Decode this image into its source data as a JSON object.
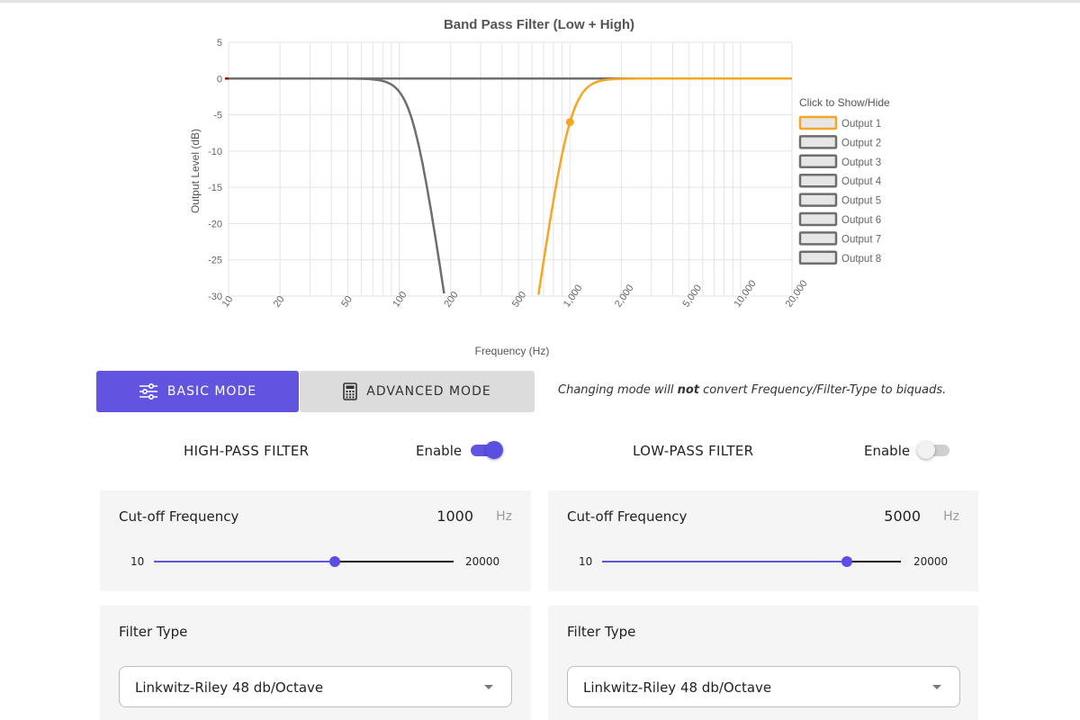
{
  "chart_data": {
    "type": "line",
    "title": "Band Pass Filter (Low + High)",
    "xlabel": "Frequency (Hz)",
    "ylabel": "Output Level (dB)",
    "x_scale": "log",
    "xlim": [
      10,
      20000
    ],
    "ylim": [
      -30,
      5
    ],
    "y_ticks": [
      5,
      0,
      -5,
      -10,
      -15,
      -20,
      -25,
      -30
    ],
    "x_ticks": [
      10,
      20,
      50,
      100,
      200,
      500,
      1000,
      2000,
      5000,
      10000,
      20000
    ],
    "x_tick_labels": [
      "10",
      "20",
      "50",
      "100",
      "200",
      "500",
      "1,000",
      "2,000",
      "5,000",
      "10,000",
      "20,000"
    ],
    "grid": true,
    "legend_title": "Click to Show/Hide",
    "legend_position": "right",
    "series": [
      {
        "name": "Output 1",
        "color": "#f5a623",
        "kind": "highpass",
        "fc": 1000,
        "order": 8,
        "marker": {
          "x": 1000,
          "y": -6
        }
      },
      {
        "name": "Output 2",
        "color": "#6e6e6e",
        "kind": "lowpass",
        "fc": 120,
        "order": 8
      },
      {
        "name": "Output 3",
        "color": "#6e6e6e"
      },
      {
        "name": "Output 4",
        "color": "#6e6e6e"
      },
      {
        "name": "Output 5",
        "color": "#6e6e6e"
      },
      {
        "name": "Output 6",
        "color": "#6e6e6e"
      },
      {
        "name": "Output 7",
        "color": "#6e6e6e"
      },
      {
        "name": "Output 8",
        "color": "#6e6e6e"
      }
    ],
    "flat_line": {
      "y": 0,
      "color": "#6e6e6e"
    }
  },
  "mode": {
    "basic_label": "BASIC MODE",
    "advanced_label": "ADVANCED MODE",
    "note_prefix": "Changing mode will ",
    "note_bold": "not",
    "note_suffix": " convert Frequency/Filter-Type to biquads.",
    "accent": "#6155e0"
  },
  "high_pass": {
    "title": "HIGH-PASS FILTER",
    "enable_label": "Enable",
    "enabled": true,
    "cutoff_label": "Cut-off Frequency",
    "cutoff_value": "1000",
    "unit": "Hz",
    "range_min": "10",
    "range_max": "20000",
    "slider_fraction": 0.605,
    "filter_type_label": "Filter Type",
    "filter_type_value": "Linkwitz-Riley 48 db/Octave"
  },
  "low_pass": {
    "title": "LOW-PASS FILTER",
    "enable_label": "Enable",
    "enabled": false,
    "cutoff_label": "Cut-off Frequency",
    "cutoff_value": "5000",
    "unit": "Hz",
    "range_min": "10",
    "range_max": "20000",
    "slider_fraction": 0.82,
    "filter_type_label": "Filter Type",
    "filter_type_value": "Linkwitz-Riley 48 db/Octave"
  }
}
